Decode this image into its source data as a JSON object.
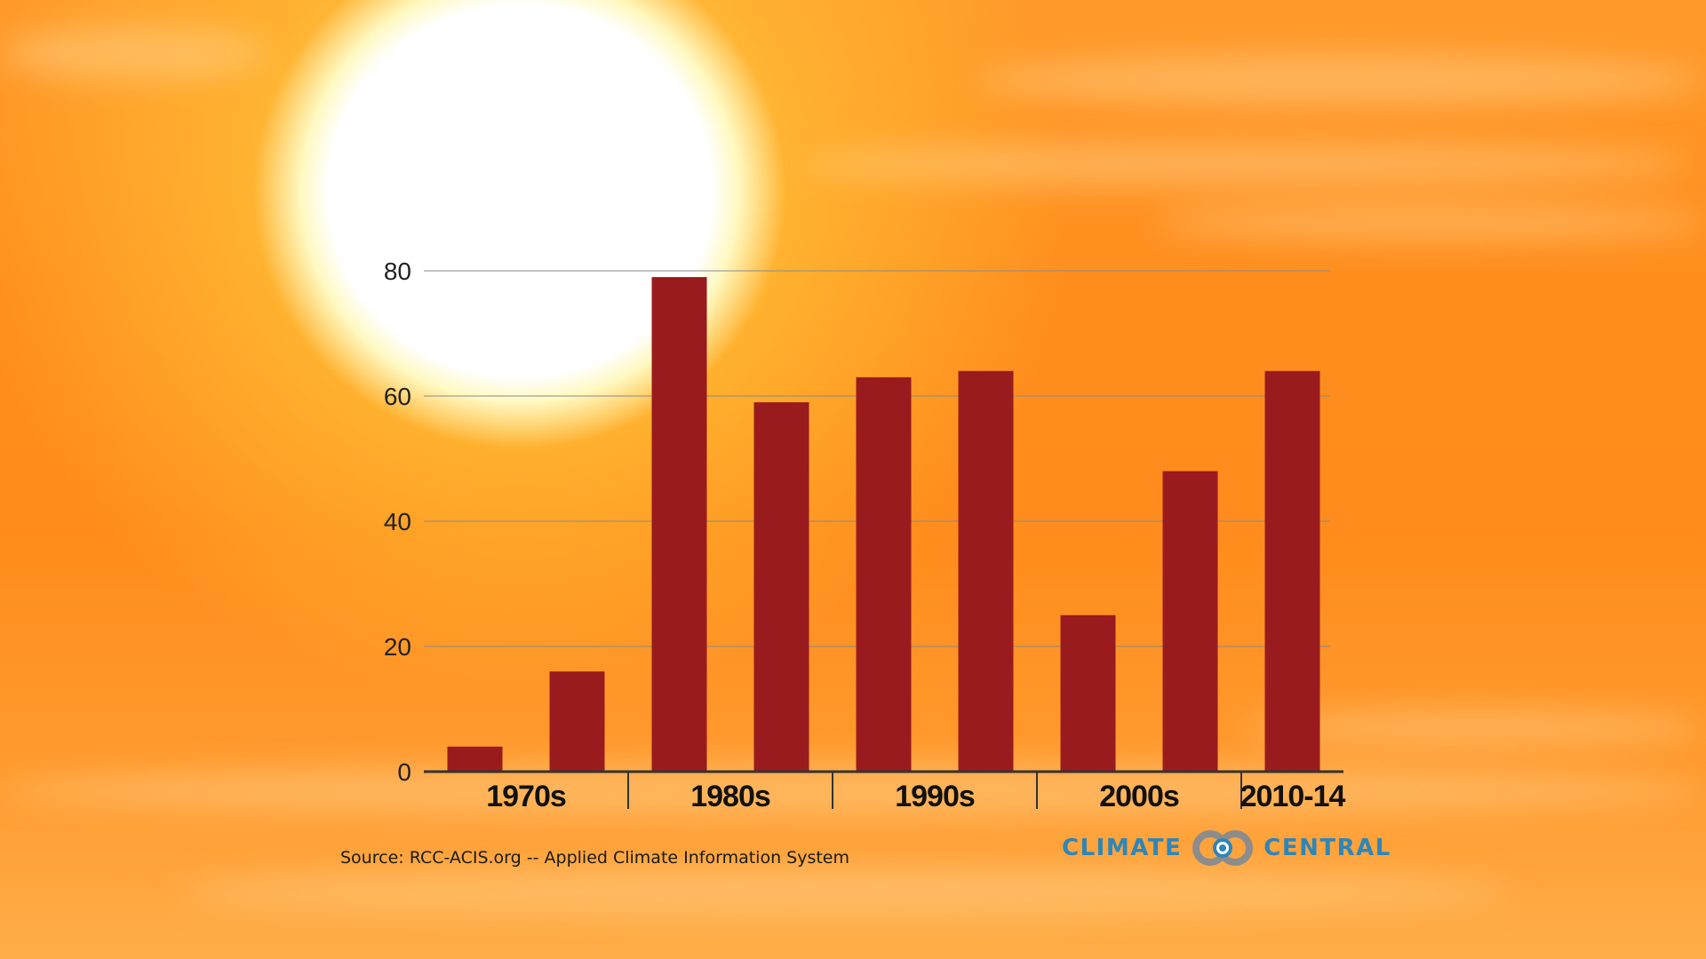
{
  "colors": {
    "bar": "#9a1b1e",
    "gridline": "#8a8a8a",
    "axis": "#333333",
    "logo_blue": "#2e86b8",
    "logo_gray": "#8c8c8c"
  },
  "chart_data": {
    "type": "bar",
    "title": "",
    "xlabel": "",
    "ylabel": "",
    "ylim": [
      0,
      80
    ],
    "yticks": [
      0,
      20,
      40,
      60,
      80
    ],
    "grid": true,
    "values": [
      4,
      16,
      79,
      59,
      63,
      64,
      25,
      48,
      64
    ],
    "groups": [
      {
        "label": "1970s",
        "count": 2
      },
      {
        "label": "1980s",
        "count": 2
      },
      {
        "label": "1990s",
        "count": 2
      },
      {
        "label": "2000s",
        "count": 2
      },
      {
        "label": "2010-14",
        "count": 1
      }
    ]
  },
  "source": "Source: RCC-ACIS.org -- Applied Climate Information System",
  "logo": {
    "left_word": "CLIMATE",
    "right_word": "CENTRAL",
    "icon": "climate-central-rings-icon"
  }
}
